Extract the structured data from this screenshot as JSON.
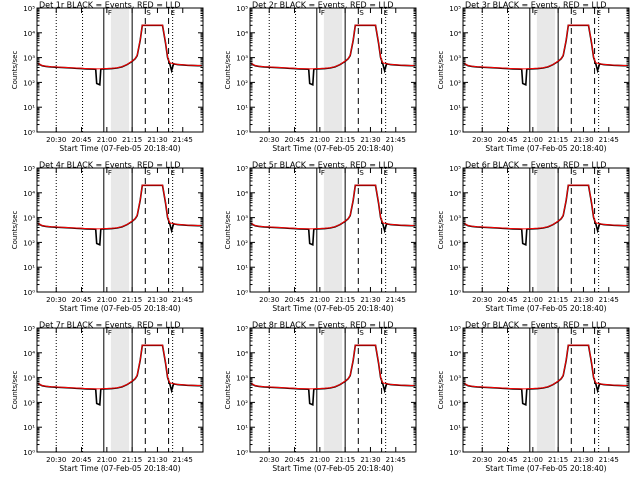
{
  "panels": [
    {
      "title": "Det 1r BLACK = Events, RED = LLD"
    },
    {
      "title": "Det 2r BLACK = Events, RED = LLD"
    },
    {
      "title": "Det 3r BLACK = Events, RED = LLD"
    },
    {
      "title": "Det 4r BLACK = Events, RED = LLD"
    },
    {
      "title": "Det 5r BLACK = Events, RED = LLD"
    },
    {
      "title": "Det 6r BLACK = Events, RED = LLD"
    },
    {
      "title": "Det 7r BLACK = Events, RED = LLD"
    },
    {
      "title": "Det 8r BLACK = Events, RED = LLD"
    },
    {
      "title": "Det 9r BLACK = Events, RED = LLD"
    }
  ],
  "chart_data": {
    "type": "line",
    "ylabel": "Counts/sec",
    "xlabel": "Start Time (07-Feb-05 20:18:40)",
    "y_scale": "log",
    "ylim": [
      1,
      100000
    ],
    "y_tick_labels": [
      "10⁰",
      "10¹",
      "10²",
      "10³",
      "10⁴",
      "10⁵"
    ],
    "x_tick_values": [
      20.5,
      20.75,
      21.0,
      21.25,
      21.5,
      21.75
    ],
    "x_tick_labels": [
      "20:30",
      "20:45",
      "21:00",
      "21:15",
      "21:30",
      "21:45"
    ],
    "xlim": [
      20.31,
      21.95
    ],
    "colors": {
      "events": "#000000",
      "lld": "#ff0000",
      "shade": "#e8e8e8"
    },
    "shaded_interval": [
      21.04,
      21.22
    ],
    "markers": [
      {
        "x": 20.5,
        "style": "dotted"
      },
      {
        "x": 20.76,
        "style": "dotted"
      },
      {
        "x": 20.97,
        "style": "solid"
      },
      {
        "x": 21.25,
        "style": "solid"
      },
      {
        "x": 21.38,
        "style": "dashed"
      },
      {
        "x": 21.61,
        "style": "dashed"
      },
      {
        "x": 21.65,
        "style": "dotted"
      }
    ],
    "top_marks": [
      {
        "x": 21.04,
        "label": "F"
      },
      {
        "x": 21.42,
        "label": "S"
      },
      {
        "x": 21.66,
        "label": "E"
      }
    ],
    "series": [
      {
        "name": "BLACK = Events",
        "color": "#000000",
        "points": [
          [
            20.32,
            600
          ],
          [
            20.34,
            520
          ],
          [
            20.36,
            470
          ],
          [
            20.4,
            440
          ],
          [
            20.45,
            420
          ],
          [
            20.5,
            410
          ],
          [
            20.55,
            400
          ],
          [
            20.6,
            390
          ],
          [
            20.65,
            380
          ],
          [
            20.7,
            370
          ],
          [
            20.75,
            360
          ],
          [
            20.8,
            350
          ],
          [
            20.85,
            345
          ],
          [
            20.89,
            340
          ],
          [
            20.9,
            90
          ],
          [
            20.93,
            80
          ],
          [
            20.94,
            345
          ],
          [
            21.0,
            355
          ],
          [
            21.05,
            360
          ],
          [
            21.1,
            380
          ],
          [
            21.15,
            420
          ],
          [
            21.2,
            520
          ],
          [
            21.25,
            700
          ],
          [
            21.28,
            900
          ],
          [
            21.3,
            1200
          ],
          [
            21.33,
            5000
          ],
          [
            21.35,
            20000
          ],
          [
            21.45,
            20000
          ],
          [
            21.55,
            20000
          ],
          [
            21.58,
            4000
          ],
          [
            21.6,
            1000
          ],
          [
            21.62,
            600
          ],
          [
            21.64,
            300
          ],
          [
            21.66,
            560
          ],
          [
            21.7,
            520
          ],
          [
            21.8,
            490
          ],
          [
            21.9,
            470
          ],
          [
            21.94,
            470
          ]
        ]
      },
      {
        "name": "RED = LLD",
        "color": "#ff0000",
        "points": [
          [
            20.32,
            610
          ],
          [
            20.34,
            530
          ],
          [
            20.36,
            480
          ],
          [
            20.4,
            450
          ],
          [
            20.45,
            430
          ],
          [
            20.5,
            420
          ],
          [
            20.55,
            410
          ],
          [
            20.6,
            400
          ],
          [
            20.65,
            390
          ],
          [
            20.7,
            380
          ],
          [
            20.75,
            370
          ],
          [
            20.8,
            360
          ],
          [
            20.85,
            355
          ],
          [
            20.89,
            350
          ],
          [
            20.94,
            355
          ],
          [
            21.0,
            365
          ],
          [
            21.05,
            370
          ],
          [
            21.1,
            390
          ],
          [
            21.15,
            430
          ],
          [
            21.2,
            530
          ],
          [
            21.25,
            720
          ],
          [
            21.28,
            920
          ],
          [
            21.3,
            1250
          ],
          [
            21.33,
            5200
          ],
          [
            21.35,
            20500
          ],
          [
            21.45,
            20500
          ],
          [
            21.55,
            20500
          ],
          [
            21.58,
            4200
          ],
          [
            21.6,
            1050
          ],
          [
            21.62,
            620
          ],
          [
            21.66,
            570
          ],
          [
            21.7,
            530
          ],
          [
            21.8,
            500
          ],
          [
            21.9,
            480
          ],
          [
            21.94,
            480
          ]
        ]
      }
    ]
  }
}
